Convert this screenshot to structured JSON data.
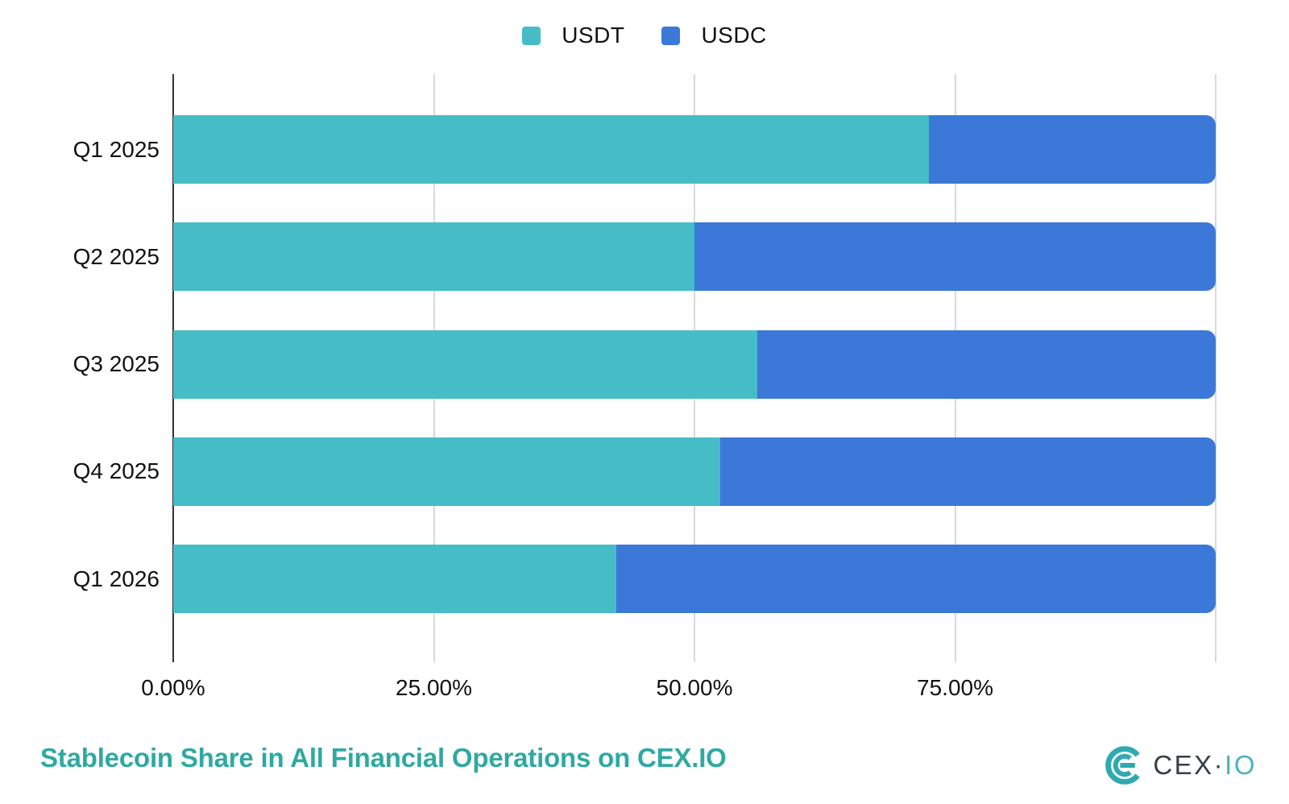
{
  "title": "Stablecoin Share in All Financial Operations on CEX.IO",
  "colors": {
    "usdt": "#46bdc6",
    "usdc": "#3c78d8",
    "title": "#2fa9a2",
    "grid": "#d9d9d9",
    "axis": "#333333",
    "text": "#111111",
    "logo_mark": "#2faab0",
    "logo_dark": "#333f48",
    "logo_teal": "#4ab4ba"
  },
  "legend": [
    {
      "label": "USDT",
      "color": "#46bdc6"
    },
    {
      "label": "USDC",
      "color": "#3c78d8"
    }
  ],
  "brand": {
    "wordmark_dark": "CEX·",
    "wordmark_teal": "IO"
  },
  "chart_data": {
    "type": "bar",
    "orientation": "horizontal",
    "stacked": true,
    "unit": "percent",
    "title": "Stablecoin Share in All Financial Operations on CEX.IO",
    "categories": [
      "Q1 2025",
      "Q2 2025",
      "Q3 2025",
      "Q4 2025",
      "Q1 2026"
    ],
    "series": [
      {
        "name": "USDT",
        "color": "#46bdc6",
        "values": [
          72.5,
          50,
          56,
          52.5,
          42.5
        ]
      },
      {
        "name": "USDC",
        "color": "#3c78d8",
        "values": [
          27.5,
          50,
          44,
          47.5,
          57.5
        ]
      }
    ],
    "xlim": [
      0,
      100
    ],
    "x_tick_values": [
      0,
      25,
      50,
      75
    ],
    "x_tick_labels": [
      "0.00%",
      "25.00%",
      "50.00%",
      "75.00%"
    ],
    "grid": true,
    "legend_position": "top"
  }
}
